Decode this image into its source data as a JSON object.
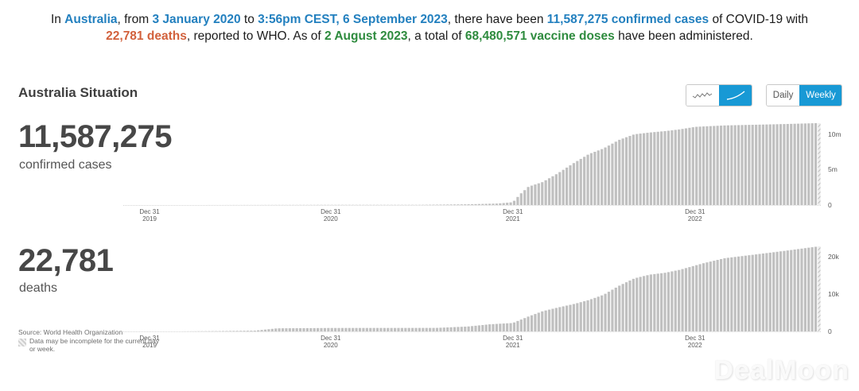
{
  "colors": {
    "dark": "#1c1c1c",
    "blue": "#2380bf",
    "orange": "#d2613c",
    "green": "#2e8b3e",
    "accent_blue": "#1899d5",
    "bar_gray": "#c0c0c0"
  },
  "banner": {
    "lines": [
      [
        {
          "t": "In ",
          "c": "dark",
          "b": false
        },
        {
          "t": "Australia",
          "c": "blue",
          "b": true
        },
        {
          "t": ", from ",
          "c": "dark",
          "b": false
        },
        {
          "t": "3 January 2020",
          "c": "blue",
          "b": true
        },
        {
          "t": " to ",
          "c": "dark",
          "b": false
        },
        {
          "t": "3:56pm CEST, 6 September 2023",
          "c": "blue",
          "b": true
        },
        {
          "t": ", there have been ",
          "c": "dark",
          "b": false
        },
        {
          "t": "11,587,275 confirmed cases",
          "c": "blue",
          "b": true
        },
        {
          "t": " of COVID-19 with ",
          "c": "dark",
          "b": false
        }
      ],
      [
        {
          "t": "22,781 deaths",
          "c": "orange",
          "b": true
        },
        {
          "t": ", reported to WHO. As of ",
          "c": "dark",
          "b": false
        },
        {
          "t": "2 August 2023",
          "c": "green",
          "b": true
        },
        {
          "t": ", a total of ",
          "c": "dark",
          "b": false
        },
        {
          "t": "68,480,571 vaccine doses",
          "c": "green",
          "b": true
        },
        {
          "t": " have been administered.",
          "c": "dark",
          "b": false
        }
      ]
    ]
  },
  "header": {
    "title": "Australia Situation"
  },
  "controls": {
    "chart_type": {
      "options": [
        {
          "icon": "zigzag-line-icon",
          "selected": false
        },
        {
          "icon": "smooth-curve-icon",
          "selected": true
        }
      ]
    },
    "frequency": {
      "options": [
        {
          "label": "Daily",
          "selected": false
        },
        {
          "label": "Weekly",
          "selected": true
        }
      ]
    }
  },
  "footer": {
    "source": "Source: World Health Organization",
    "disclaimer": "Data may be incomplete for the current day or week."
  },
  "watermark": "DealMoon",
  "chart_data": [
    {
      "type": "bar",
      "metric": "confirmed cases cumulative (weekly)",
      "big_number": "11,587,275",
      "label": "confirmed cases",
      "bar_color": "#c0c0c0",
      "n_bars": 192,
      "last_bar_incomplete": true,
      "ylim": [
        0,
        12130000
      ],
      "y_ticks": [
        {
          "label": "10m",
          "value": 10000000
        },
        {
          "label": "5m",
          "value": 5000000
        },
        {
          "label": "0",
          "value": 0
        }
      ],
      "x_ticks": [
        {
          "line1": "Dec 31",
          "line2": "2019",
          "pos": 0.0
        },
        {
          "line1": "Dec 31",
          "line2": "2020",
          "pos": 0.2705
        },
        {
          "line1": "Dec 31",
          "line2": "2021",
          "pos": 0.5425
        },
        {
          "line1": "Dec 31",
          "line2": "2022",
          "pos": 0.8145
        }
      ],
      "anchors": [
        [
          0.0,
          0
        ],
        [
          0.112,
          7200
        ],
        [
          0.2705,
          28500
        ],
        [
          0.405,
          31000
        ],
        [
          0.475,
          105000
        ],
        [
          0.52,
          210000
        ],
        [
          0.5425,
          400000
        ],
        [
          0.5537,
          1550000
        ],
        [
          0.566,
          2600000
        ],
        [
          0.587,
          3250000
        ],
        [
          0.61,
          4500000
        ],
        [
          0.633,
          5900000
        ],
        [
          0.656,
          7200000
        ],
        [
          0.678,
          8000000
        ],
        [
          0.701,
          9200000
        ],
        [
          0.724,
          10000000
        ],
        [
          0.747,
          10250000
        ],
        [
          0.77,
          10450000
        ],
        [
          0.792,
          10700000
        ],
        [
          0.815,
          11050000
        ],
        [
          0.859,
          11250000
        ],
        [
          0.905,
          11350000
        ],
        [
          0.95,
          11450000
        ],
        [
          1.0,
          11587275
        ]
      ]
    },
    {
      "type": "bar",
      "metric": "deaths cumulative (weekly)",
      "big_number": "22,781",
      "label": "deaths",
      "bar_color": "#c0c0c0",
      "n_bars": 192,
      "last_bar_incomplete": true,
      "ylim": [
        0,
        23830
      ],
      "y_ticks": [
        {
          "label": "20k",
          "value": 20000
        },
        {
          "label": "10k",
          "value": 10000
        },
        {
          "label": "0",
          "value": 0
        }
      ],
      "x_ticks": [
        {
          "line1": "Dec 31",
          "line2": "2019",
          "pos": 0.0
        },
        {
          "line1": "Dec 31",
          "line2": "2020",
          "pos": 0.2705
        },
        {
          "line1": "Dec 31",
          "line2": "2021",
          "pos": 0.5425
        },
        {
          "line1": "Dec 31",
          "line2": "2022",
          "pos": 0.8145
        }
      ],
      "anchors": [
        [
          0.0,
          0
        ],
        [
          0.043,
          3
        ],
        [
          0.112,
          103
        ],
        [
          0.157,
          200
        ],
        [
          0.191,
          820
        ],
        [
          0.2705,
          910
        ],
        [
          0.428,
          930
        ],
        [
          0.475,
          1300
        ],
        [
          0.508,
          1900
        ],
        [
          0.5425,
          2250
        ],
        [
          0.566,
          4000
        ],
        [
          0.587,
          5400
        ],
        [
          0.61,
          6400
        ],
        [
          0.633,
          7300
        ],
        [
          0.656,
          8400
        ],
        [
          0.678,
          9800
        ],
        [
          0.701,
          12200
        ],
        [
          0.724,
          14200
        ],
        [
          0.747,
          15200
        ],
        [
          0.77,
          15700
        ],
        [
          0.792,
          16500
        ],
        [
          0.826,
          18200
        ],
        [
          0.859,
          19600
        ],
        [
          0.905,
          20600
        ],
        [
          0.95,
          21600
        ],
        [
          1.0,
          22781
        ]
      ]
    }
  ]
}
